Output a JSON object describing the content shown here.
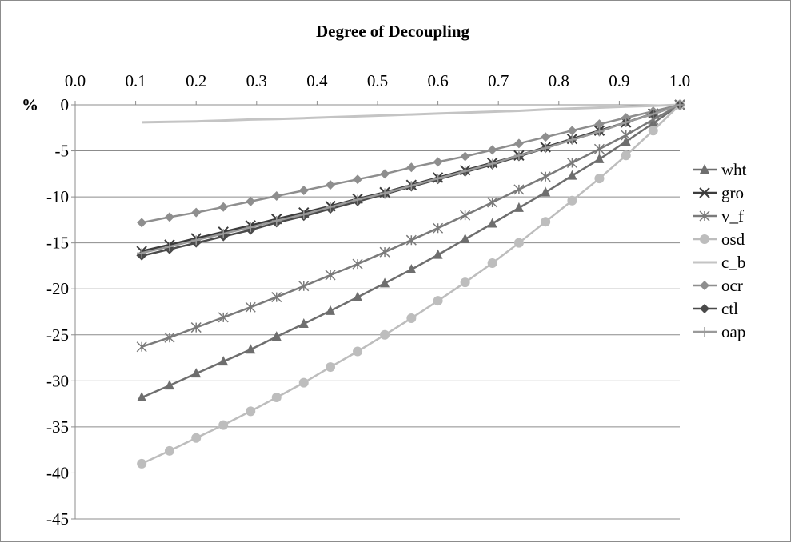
{
  "chart_data": {
    "type": "line",
    "title": "Degree of Decoupling",
    "xlabel": "",
    "ylabel": "%",
    "xlim": [
      0.0,
      1.0
    ],
    "ylim": [
      -45,
      0
    ],
    "x_ticks": [
      "0.0",
      "0.1",
      "0.2",
      "0.3",
      "0.4",
      "0.5",
      "0.6",
      "0.7",
      "0.8",
      "0.9",
      "1.0"
    ],
    "y_ticks": [
      "0",
      "-5",
      "-10",
      "-15",
      "-20",
      "-25",
      "-30",
      "-35",
      "-40",
      "-45"
    ],
    "x_axis_position": "top",
    "grid": "horizontal",
    "legend_position": "right",
    "x": [
      0.11,
      0.156,
      0.2,
      0.245,
      0.29,
      0.333,
      0.378,
      0.422,
      0.467,
      0.512,
      0.556,
      0.6,
      0.645,
      0.69,
      0.734,
      0.778,
      0.822,
      0.867,
      0.911,
      0.956,
      1.0
    ],
    "series": [
      {
        "name": "wht",
        "color": "#6e6e6e",
        "marker": "triangle",
        "values": [
          -31.8,
          -30.5,
          -29.2,
          -27.9,
          -26.6,
          -25.2,
          -23.8,
          -22.4,
          -20.9,
          -19.4,
          -17.9,
          -16.3,
          -14.6,
          -12.9,
          -11.2,
          -9.5,
          -7.7,
          -5.9,
          -4.0,
          -2.0,
          0
        ]
      },
      {
        "name": "gro",
        "color": "#3c3c3c",
        "marker": "x",
        "values": [
          -15.9,
          -15.2,
          -14.5,
          -13.8,
          -13.1,
          -12.4,
          -11.7,
          -11.0,
          -10.2,
          -9.5,
          -8.7,
          -7.9,
          -7.1,
          -6.3,
          -5.5,
          -4.6,
          -3.7,
          -2.8,
          -1.9,
          -0.95,
          0
        ]
      },
      {
        "name": "v_f",
        "color": "#7a7a7a",
        "marker": "asterisk",
        "values": [
          -26.3,
          -25.3,
          -24.2,
          -23.1,
          -22.0,
          -20.9,
          -19.7,
          -18.5,
          -17.3,
          -16.0,
          -14.7,
          -13.4,
          -12.0,
          -10.6,
          -9.2,
          -7.8,
          -6.3,
          -4.8,
          -3.3,
          -1.6,
          0
        ]
      },
      {
        "name": "osd",
        "color": "#bdbdbd",
        "marker": "circle",
        "values": [
          -39.0,
          -37.6,
          -36.2,
          -34.8,
          -33.3,
          -31.8,
          -30.2,
          -28.5,
          -26.8,
          -25.0,
          -23.2,
          -21.3,
          -19.3,
          -17.2,
          -15.0,
          -12.7,
          -10.4,
          -8.0,
          -5.5,
          -2.8,
          0
        ]
      },
      {
        "name": "c_b",
        "color": "#c4c4c4",
        "marker": "none",
        "values": [
          -1.9,
          -1.85,
          -1.8,
          -1.7,
          -1.6,
          -1.55,
          -1.45,
          -1.35,
          -1.25,
          -1.15,
          -1.05,
          -0.95,
          -0.85,
          -0.75,
          -0.65,
          -0.5,
          -0.4,
          -0.3,
          -0.2,
          -0.1,
          0
        ]
      },
      {
        "name": "ocr",
        "color": "#8e8e8e",
        "marker": "diamond",
        "values": [
          -12.8,
          -12.2,
          -11.7,
          -11.1,
          -10.5,
          -9.9,
          -9.3,
          -8.7,
          -8.1,
          -7.5,
          -6.8,
          -6.2,
          -5.6,
          -4.9,
          -4.2,
          -3.5,
          -2.8,
          -2.1,
          -1.4,
          -0.7,
          0
        ]
      },
      {
        "name": "ctl",
        "color": "#4a4a4a",
        "marker": "diamond",
        "values": [
          -16.4,
          -15.7,
          -15.0,
          -14.3,
          -13.6,
          -12.8,
          -12.1,
          -11.3,
          -10.5,
          -9.7,
          -8.9,
          -8.1,
          -7.3,
          -6.5,
          -5.6,
          -4.7,
          -3.8,
          -2.9,
          -1.9,
          -1.0,
          0
        ]
      },
      {
        "name": "oap",
        "color": "#9a9a9a",
        "marker": "plus",
        "values": [
          -16.1,
          -15.4,
          -14.7,
          -14.0,
          -13.3,
          -12.6,
          -11.9,
          -11.1,
          -10.3,
          -9.6,
          -8.8,
          -8.0,
          -7.2,
          -6.4,
          -5.5,
          -4.7,
          -3.8,
          -2.9,
          -1.9,
          -1.0,
          0
        ]
      }
    ]
  }
}
